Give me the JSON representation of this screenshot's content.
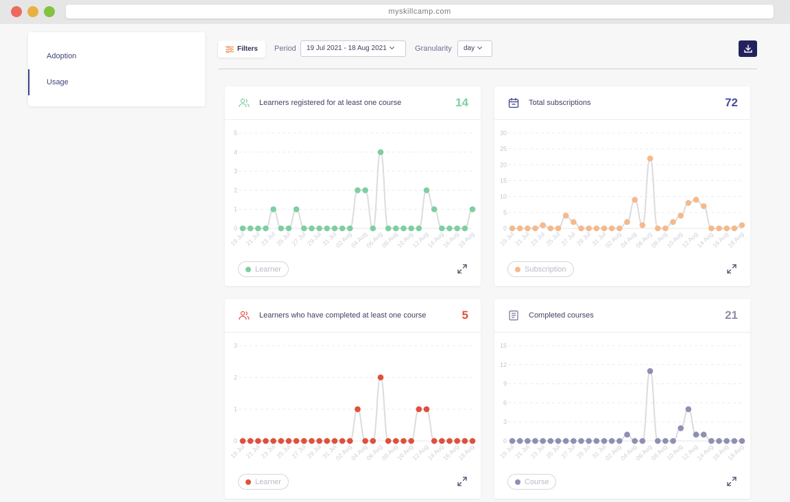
{
  "browser": {
    "url": "myskillcamp.com"
  },
  "sidebar": {
    "items": [
      {
        "label": "Adoption",
        "active": false
      },
      {
        "label": "Usage",
        "active": true
      }
    ]
  },
  "toolbar": {
    "filters_label": "Filters",
    "period_label": "Period",
    "period_value": "19 Jul 2021 - 18 Aug 2021",
    "granularity_label": "Granularity",
    "granularity_value": "day",
    "download_icon": "download-icon"
  },
  "colors": {
    "green": "#7dcfa1",
    "orange": "#f4b98c",
    "red": "#e0503c",
    "purple": "#8e8fb4",
    "indigo": "#4a4d9e",
    "grey_value": "#8d8fa8"
  },
  "cards": [
    {
      "title": "Learners registered for at least one course",
      "value": "14",
      "legend": "Learner",
      "icon": "users-icon"
    },
    {
      "title": "Total subscriptions",
      "value": "72",
      "legend": "Subscription",
      "icon": "calendar-icon"
    },
    {
      "title": "Learners who have completed at least one course",
      "value": "5",
      "legend": "Learner",
      "icon": "users-icon"
    },
    {
      "title": "Completed courses",
      "value": "21",
      "legend": "Course",
      "icon": "document-icon"
    }
  ],
  "chart_data": [
    {
      "type": "line",
      "x": [
        "19 Jul",
        "20 Jul",
        "21 Jul",
        "22 Jul",
        "23 Jul",
        "24 Jul",
        "25 Jul",
        "26 Jul",
        "27 Jul",
        "28 Jul",
        "29 Jul",
        "30 Jul",
        "31 Jul",
        "01 Aug",
        "02 Aug",
        "03 Aug",
        "04 Aug",
        "05 Aug",
        "06 Aug",
        "07 Aug",
        "08 Aug",
        "09 Aug",
        "10 Aug",
        "11 Aug",
        "12 Aug",
        "13 Aug",
        "14 Aug",
        "15 Aug",
        "16 Aug",
        "17 Aug",
        "18 Aug"
      ],
      "xticks": [
        "19 Jul",
        "21 Jul",
        "23 Jul",
        "25 Jul",
        "27 Jul",
        "29 Jul",
        "31 Jul",
        "02 Aug",
        "04 Aug",
        "06 Aug",
        "08 Aug",
        "10 Aug",
        "12 Aug",
        "14 Aug",
        "16 Aug",
        "18 Aug"
      ],
      "yticks": [
        0,
        1,
        2,
        3,
        4,
        5
      ],
      "ylim": [
        0,
        5
      ],
      "grid": true,
      "series": [
        {
          "name": "Learner",
          "values": [
            0,
            0,
            0,
            0,
            1,
            0,
            0,
            1,
            0,
            0,
            0,
            0,
            0,
            0,
            0,
            2,
            2,
            0,
            4,
            0,
            0,
            0,
            0,
            0,
            2,
            1,
            0,
            0,
            0,
            0,
            1
          ]
        }
      ]
    },
    {
      "type": "line",
      "x": [
        "19 Jul",
        "20 Jul",
        "21 Jul",
        "22 Jul",
        "23 Jul",
        "24 Jul",
        "25 Jul",
        "26 Jul",
        "27 Jul",
        "28 Jul",
        "29 Jul",
        "30 Jul",
        "31 Jul",
        "01 Aug",
        "02 Aug",
        "03 Aug",
        "04 Aug",
        "05 Aug",
        "06 Aug",
        "07 Aug",
        "08 Aug",
        "09 Aug",
        "10 Aug",
        "11 Aug",
        "12 Aug",
        "13 Aug",
        "14 Aug",
        "15 Aug",
        "16 Aug",
        "17 Aug",
        "18 Aug"
      ],
      "xticks": [
        "19 Jul",
        "21 Jul",
        "23 Jul",
        "25 Jul",
        "27 Jul",
        "29 Jul",
        "31 Jul",
        "02 Aug",
        "04 Aug",
        "06 Aug",
        "08 Aug",
        "10 Aug",
        "12 Aug",
        "14 Aug",
        "16 Aug",
        "18 Aug"
      ],
      "yticks": [
        0,
        5,
        10,
        15,
        20,
        25,
        30
      ],
      "ylim": [
        0,
        30
      ],
      "grid": true,
      "series": [
        {
          "name": "Subscription",
          "values": [
            0,
            0,
            0,
            0,
            1,
            0,
            0,
            4,
            2,
            0,
            0,
            0,
            0,
            0,
            0,
            2,
            9,
            1,
            22,
            0,
            0,
            2,
            4,
            8,
            9,
            7,
            0,
            0,
            0,
            0,
            1
          ]
        }
      ]
    },
    {
      "type": "line",
      "x": [
        "19 Jul",
        "20 Jul",
        "21 Jul",
        "22 Jul",
        "23 Jul",
        "24 Jul",
        "25 Jul",
        "26 Jul",
        "27 Jul",
        "28 Jul",
        "29 Jul",
        "30 Jul",
        "31 Jul",
        "01 Aug",
        "02 Aug",
        "03 Aug",
        "04 Aug",
        "05 Aug",
        "06 Aug",
        "07 Aug",
        "08 Aug",
        "09 Aug",
        "10 Aug",
        "11 Aug",
        "12 Aug",
        "13 Aug",
        "14 Aug",
        "15 Aug",
        "16 Aug",
        "17 Aug",
        "18 Aug"
      ],
      "xticks": [
        "19 Jul",
        "21 Jul",
        "23 Jul",
        "25 Jul",
        "27 Jul",
        "29 Jul",
        "31 Jul",
        "02 Aug",
        "04 Aug",
        "06 Aug",
        "08 Aug",
        "10 Aug",
        "12 Aug",
        "14 Aug",
        "16 Aug",
        "18 Aug"
      ],
      "yticks": [
        0,
        1,
        2,
        3
      ],
      "ylim": [
        0,
        3
      ],
      "grid": true,
      "series": [
        {
          "name": "Learner",
          "values": [
            0,
            0,
            0,
            0,
            0,
            0,
            0,
            0,
            0,
            0,
            0,
            0,
            0,
            0,
            0,
            1,
            0,
            0,
            2,
            0,
            0,
            0,
            0,
            1,
            1,
            0,
            0,
            0,
            0,
            0,
            0
          ]
        }
      ]
    },
    {
      "type": "line",
      "x": [
        "19 Jul",
        "20 Jul",
        "21 Jul",
        "22 Jul",
        "23 Jul",
        "24 Jul",
        "25 Jul",
        "26 Jul",
        "27 Jul",
        "28 Jul",
        "29 Jul",
        "30 Jul",
        "31 Jul",
        "01 Aug",
        "02 Aug",
        "03 Aug",
        "04 Aug",
        "05 Aug",
        "06 Aug",
        "07 Aug",
        "08 Aug",
        "09 Aug",
        "10 Aug",
        "11 Aug",
        "12 Aug",
        "13 Aug",
        "14 Aug",
        "15 Aug",
        "16 Aug",
        "17 Aug",
        "18 Aug"
      ],
      "xticks": [
        "19 Jul",
        "21 Jul",
        "23 Jul",
        "25 Jul",
        "27 Jul",
        "29 Jul",
        "31 Jul",
        "02 Aug",
        "04 Aug",
        "06 Aug",
        "08 Aug",
        "10 Aug",
        "12 Aug",
        "14 Aug",
        "16 Aug",
        "18 Aug"
      ],
      "yticks": [
        0,
        3,
        6,
        9,
        12,
        15
      ],
      "ylim": [
        0,
        15
      ],
      "grid": true,
      "series": [
        {
          "name": "Course",
          "values": [
            0,
            0,
            0,
            0,
            0,
            0,
            0,
            0,
            0,
            0,
            0,
            0,
            0,
            0,
            0,
            1,
            0,
            0,
            11,
            0,
            0,
            0,
            2,
            5,
            1,
            1,
            0,
            0,
            0,
            0,
            0
          ]
        }
      ]
    }
  ]
}
